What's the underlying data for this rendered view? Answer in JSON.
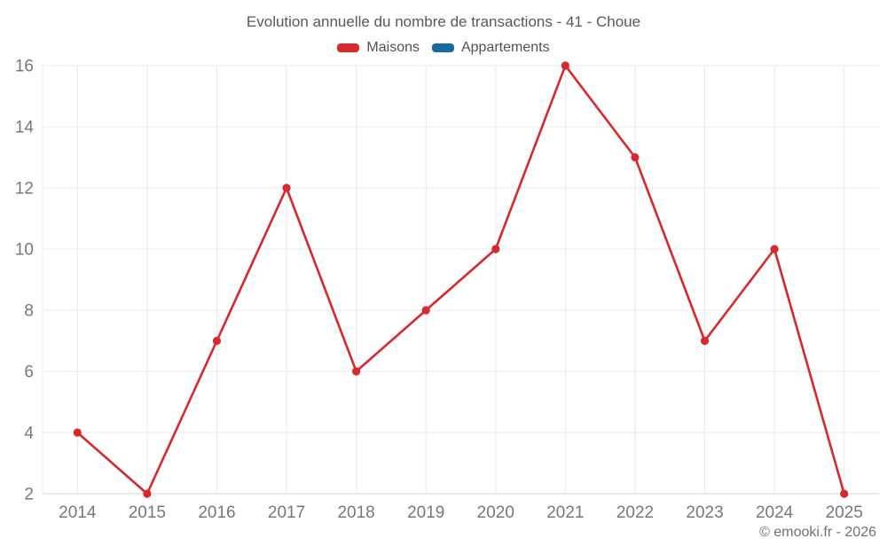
{
  "title": "Evolution annuelle du nombre de transactions - 41 - Choue",
  "footer": "© emooki.fr - 2026",
  "colors": {
    "background": "#ffffff",
    "maisons_red": "#d7282e",
    "appartements_blue": "#17699f",
    "gridline": "#e9e9e9",
    "axis_line": "#d4d4d4",
    "tick_text": "#75787b",
    "title_text": "#55595d",
    "legend_text": "#4e5356",
    "footer_text": "#6d7276"
  },
  "chart_data": {
    "type": "line",
    "title": "Evolution annuelle du nombre de transactions - 41 - Choue",
    "categories": [
      "2014",
      "2015",
      "2016",
      "2017",
      "2018",
      "2019",
      "2020",
      "2021",
      "2022",
      "2023",
      "2024",
      "2025"
    ],
    "series": [
      {
        "name": "Maisons",
        "color": "#d7282e",
        "values": [
          4,
          2,
          7,
          12,
          6,
          8,
          10,
          16,
          13,
          7,
          10,
          2
        ]
      },
      {
        "name": "Appartements",
        "color": "#17699f",
        "values": []
      }
    ],
    "xlabel": "",
    "ylabel": "",
    "ylim": [
      2,
      16
    ],
    "yticks": [
      2,
      4,
      6,
      8,
      10,
      12,
      14,
      16
    ],
    "grid": true,
    "legend_position": "top"
  }
}
